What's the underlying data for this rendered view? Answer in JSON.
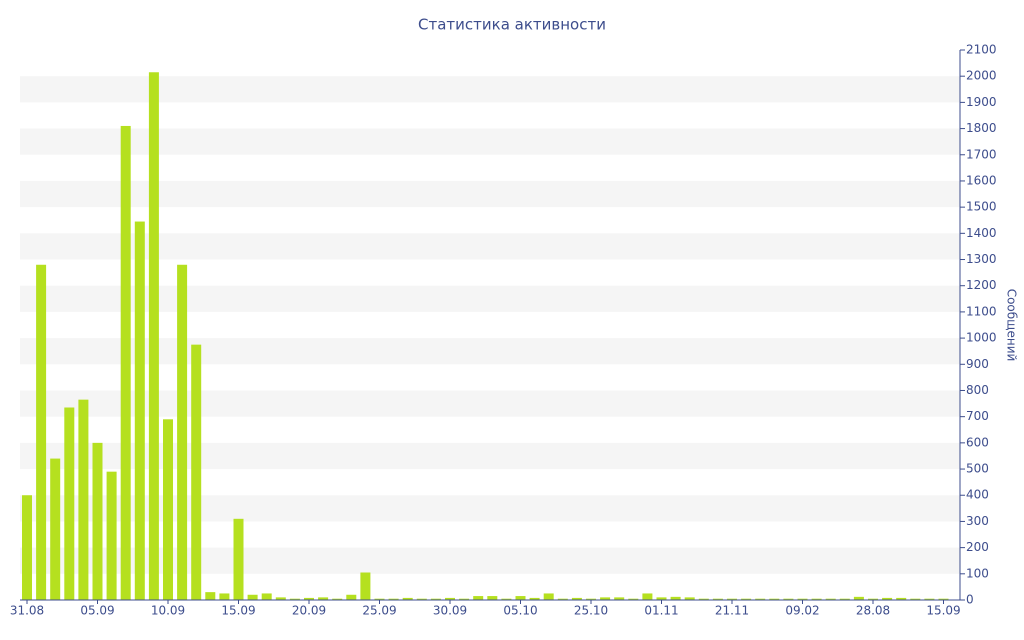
{
  "chart_data": {
    "type": "bar",
    "title": "Статистика активности",
    "y_label": "Сообщений",
    "categories": [
      "31.08",
      null,
      null,
      null,
      null,
      "05.09",
      null,
      null,
      null,
      null,
      "10.09",
      null,
      null,
      null,
      null,
      "15.09",
      null,
      null,
      null,
      null,
      "20.09",
      null,
      null,
      null,
      null,
      "25.09",
      null,
      null,
      null,
      null,
      "30.09",
      null,
      null,
      null,
      null,
      "05.10",
      null,
      null,
      null,
      null,
      "25.10",
      null,
      null,
      null,
      null,
      "01.11",
      null,
      null,
      null,
      null,
      "21.11",
      null,
      null,
      null,
      null,
      "09.02",
      null,
      null,
      null,
      null,
      "28.08",
      null,
      null,
      null,
      null,
      "15.09"
    ],
    "values": [
      400,
      1280,
      540,
      735,
      765,
      600,
      490,
      1810,
      1445,
      2015,
      690,
      1280,
      975,
      30,
      25,
      310,
      20,
      25,
      10,
      5,
      8,
      10,
      5,
      20,
      105,
      5,
      5,
      8,
      5,
      5,
      8,
      5,
      15,
      15,
      5,
      15,
      8,
      25,
      5,
      8,
      5,
      10,
      10,
      5,
      25,
      10,
      12,
      10,
      5,
      5,
      5,
      5,
      5,
      5,
      5,
      5,
      5,
      5,
      5,
      12,
      5,
      8,
      8,
      5,
      5,
      5
    ],
    "color": "#b5e01f",
    "ylim": [
      0,
      2100
    ],
    "yticks": [
      0,
      100,
      200,
      300,
      400,
      500,
      600,
      700,
      800,
      900,
      1000,
      1100,
      1200,
      1300,
      1400,
      1500,
      1600,
      1700,
      1800,
      1900,
      2000,
      2100
    ],
    "grid": true
  }
}
